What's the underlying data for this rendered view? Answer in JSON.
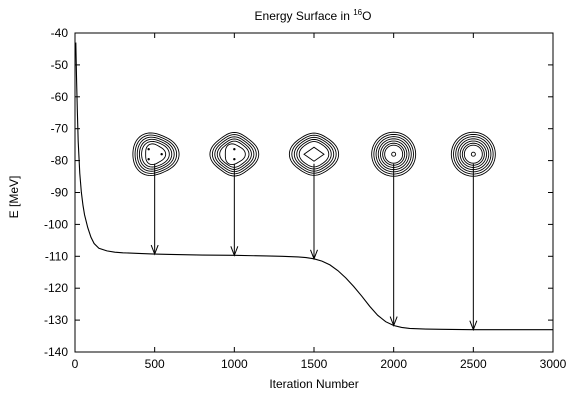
{
  "chart_data": {
    "type": "line",
    "title": "Energy Surface in ",
    "title_superscript": "16",
    "title_suffix": "O",
    "xlabel": "Iteration Number",
    "ylabel": "E [MeV]",
    "xlim": [
      0,
      3000
    ],
    "ylim": [
      -140,
      -40
    ],
    "xticks": [
      0,
      500,
      1000,
      1500,
      2000,
      2500,
      3000
    ],
    "yticks": [
      -40,
      -50,
      -60,
      -70,
      -80,
      -90,
      -100,
      -110,
      -120,
      -130,
      -140
    ],
    "grid": false,
    "series": [
      {
        "x": [
          5,
          10,
          15,
          20,
          30,
          40,
          50,
          60,
          80,
          100,
          120,
          150,
          200,
          250,
          300,
          400,
          500,
          600,
          800,
          1000,
          1200,
          1300,
          1400,
          1450,
          1500,
          1550,
          1600,
          1650,
          1700,
          1750,
          1800,
          1850,
          1900,
          1950,
          2000,
          2050,
          2100,
          2200,
          2300,
          2500,
          2700,
          3000
        ],
        "y": [
          -43,
          -55,
          -65,
          -74,
          -84,
          -90,
          -94,
          -97,
          -101,
          -104,
          -106,
          -107.5,
          -108.3,
          -108.7,
          -108.9,
          -109.1,
          -109.3,
          -109.4,
          -109.6,
          -109.7,
          -109.9,
          -110.0,
          -110.2,
          -110.4,
          -110.8,
          -111.5,
          -112.7,
          -114.5,
          -116.8,
          -119.5,
          -122.5,
          -125.7,
          -128.5,
          -130.5,
          -131.7,
          -132.3,
          -132.6,
          -132.8,
          -132.9,
          -133.0,
          -133.0,
          -133.0
        ]
      }
    ],
    "annotations": [
      {
        "x": 500,
        "y_start": -81,
        "y_end": -109.3,
        "contour": "three-lobed cluster with three inner points"
      },
      {
        "x": 1000,
        "y_start": -81,
        "y_end": -109.7,
        "contour": "flattened cluster with two inner points"
      },
      {
        "x": 1500,
        "y_start": -81,
        "y_end": -110.8,
        "contour": "elongated contours with inner diamond"
      },
      {
        "x": 2000,
        "y_start": -81,
        "y_end": -131.7,
        "contour": "spherical rings with small central ring"
      },
      {
        "x": 2500,
        "y_start": -81,
        "y_end": -133.0,
        "contour": "spherical rings with small central ring"
      }
    ]
  }
}
